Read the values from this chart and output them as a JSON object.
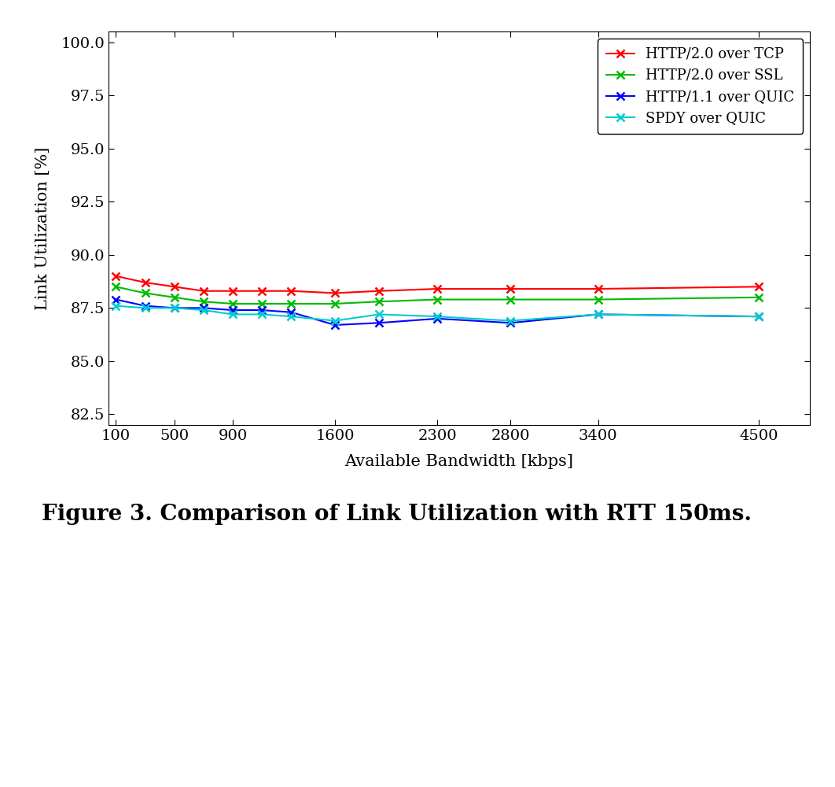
{
  "x_values": [
    100,
    300,
    500,
    700,
    900,
    1100,
    1300,
    1600,
    1900,
    2300,
    2800,
    3400,
    4500
  ],
  "series": [
    {
      "label": "HTTP/2.0 over TCP",
      "color": "#FF0000",
      "data": [
        89.0,
        88.7,
        88.5,
        88.3,
        88.3,
        88.3,
        88.3,
        88.2,
        88.3,
        88.4,
        88.4,
        88.4,
        88.5
      ]
    },
    {
      "label": "HTTP/2.0 over SSL",
      "color": "#00BB00",
      "data": [
        88.5,
        88.2,
        88.0,
        87.8,
        87.7,
        87.7,
        87.7,
        87.7,
        87.8,
        87.9,
        87.9,
        87.9,
        88.0
      ]
    },
    {
      "label": "HTTP/1.1 over QUIC",
      "color": "#0000FF",
      "data": [
        87.9,
        87.6,
        87.5,
        87.5,
        87.4,
        87.4,
        87.3,
        86.7,
        86.8,
        87.0,
        86.8,
        87.2,
        87.1
      ]
    },
    {
      "label": "SPDY over QUIC",
      "color": "#00CCCC",
      "data": [
        87.6,
        87.5,
        87.5,
        87.4,
        87.2,
        87.2,
        87.1,
        86.9,
        87.2,
        87.1,
        86.9,
        87.2,
        87.1
      ]
    }
  ],
  "x_ticks": [
    100,
    500,
    900,
    1600,
    2300,
    2800,
    3400,
    4500
  ],
  "x_tick_labels": [
    "100",
    "500",
    "900",
    "1600",
    "2300",
    "2800",
    "3400",
    "4500"
  ],
  "y_min": 82.0,
  "y_max": 100.5,
  "y_ticks": [
    82.5,
    85.0,
    87.5,
    90.0,
    92.5,
    95.0,
    97.5,
    100.0
  ],
  "xlabel": "Available Bandwidth [kbps]",
  "ylabel": "Link Utilization [%]",
  "caption": "Figure 3. Comparison of Link Utilization with RTT 150ms.",
  "background_color": "#FFFFFF",
  "marker": "x",
  "linewidth": 1.5,
  "markersize": 7,
  "markeredgewidth": 1.8
}
